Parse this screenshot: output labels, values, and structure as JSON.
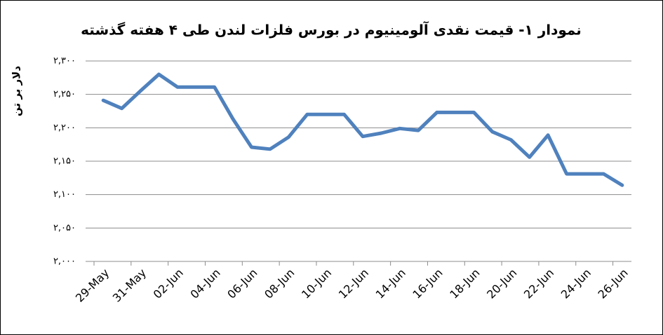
{
  "chart_data": {
    "type": "line",
    "title": "نمودار ۱- قیمت نقدی آلومینیوم در بورس فلزات لندن طی ۴ هفته گذشته",
    "y_label": "دلار بر تن",
    "categories": [
      "29-May",
      null,
      "31-May",
      null,
      "02-Jun",
      null,
      "04-Jun",
      null,
      "06-Jun",
      null,
      "08-Jun",
      null,
      "10-Jun",
      null,
      "12-Jun",
      null,
      "14-Jun",
      null,
      "16-Jun",
      null,
      "18-Jun",
      null,
      "20-Jun",
      null,
      "22-Jun",
      null,
      "24-Jun",
      null,
      "26-Jun"
    ],
    "values": [
      2241,
      2229,
      2255,
      2280,
      2261,
      2261,
      2261,
      2213,
      2171,
      2168,
      2186,
      2220,
      2220,
      2220,
      2187,
      2192,
      2199,
      2196,
      2223,
      2223,
      2223,
      2194,
      2182,
      2156,
      2189,
      2131,
      2131,
      2131,
      2114
    ],
    "color": "#4f81bd",
    "ylim": [
      2000,
      2300
    ],
    "yticks": [
      {
        "value": 2000,
        "label": "۲,۰۰۰"
      },
      {
        "value": 2050,
        "label": "۲,۰۵۰"
      },
      {
        "value": 2100,
        "label": "۲,۱۰۰"
      },
      {
        "value": 2150,
        "label": "۲,۱۵۰"
      },
      {
        "value": 2200,
        "label": "۲,۲۰۰"
      },
      {
        "value": 2250,
        "label": "۲,۲۵۰"
      },
      {
        "value": 2300,
        "label": "۲,۳۰۰"
      }
    ],
    "grid": true
  }
}
